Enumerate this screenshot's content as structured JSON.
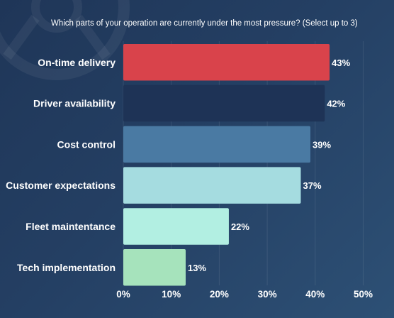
{
  "question": "Which parts of your operation are currently under the most pressure? (Select up to 3)",
  "chart_data": {
    "type": "bar",
    "orientation": "horizontal",
    "categories": [
      "On-time delivery",
      "Driver availability",
      "Cost control",
      "Customer expectations",
      "Fleet maintentance",
      "Tech implementation"
    ],
    "values": [
      43,
      42,
      39,
      37,
      22,
      13
    ],
    "value_labels": [
      "43%",
      "42%",
      "39%",
      "37%",
      "22%",
      "13%"
    ],
    "bar_colors": [
      "#d9434b",
      "#1e3356",
      "#4a7aa3",
      "#a5dce0",
      "#b2efe2",
      "#a6e3bc"
    ],
    "xlim": [
      0,
      50
    ],
    "xticks": [
      0,
      10,
      20,
      30,
      40,
      50
    ],
    "xtick_labels": [
      "0%",
      "10%",
      "20%",
      "30%",
      "40%",
      "50%"
    ],
    "grid": true,
    "legend": "none",
    "title": "",
    "xlabel": "",
    "ylabel": ""
  }
}
